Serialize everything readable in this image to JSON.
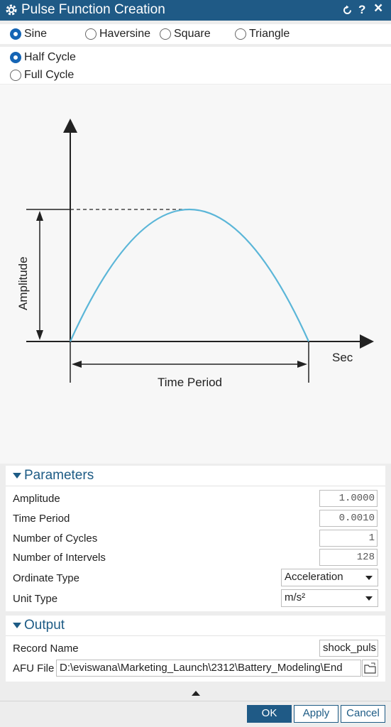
{
  "window": {
    "title": "Pulse Function Creation",
    "reset_icon": "reset-icon",
    "help_label": "?",
    "close_label": "×"
  },
  "pulse_types": [
    {
      "label": "Sine",
      "selected": true
    },
    {
      "label": "Haversine",
      "selected": false
    },
    {
      "label": "Square",
      "selected": false
    },
    {
      "label": "Triangle",
      "selected": false
    }
  ],
  "cycle_options": [
    {
      "label": "Half Cycle",
      "selected": true
    },
    {
      "label": "Full Cycle",
      "selected": false
    }
  ],
  "diagram": {
    "y_label": "Amplitude",
    "x_unit": "Sec",
    "span_label": "Time Period",
    "curve_color": "#5bb6d8"
  },
  "parameters": {
    "title": "Parameters",
    "amplitude": {
      "label": "Amplitude",
      "value": "1.0000"
    },
    "time_period": {
      "label": "Time Period",
      "value": "0.0010"
    },
    "cycles": {
      "label": "Number of Cycles",
      "value": "1"
    },
    "intervals": {
      "label": "Number of Intervels",
      "value": "128"
    },
    "ordinate_type": {
      "label": "Ordinate Type",
      "value": "Acceleration"
    },
    "unit_type": {
      "label": "Unit Type",
      "value": "m/s²"
    }
  },
  "output": {
    "title": "Output",
    "record_name": {
      "label": "Record Name",
      "value": "shock_puls"
    },
    "afu_file": {
      "label": "AFU File",
      "value": "D:\\eviswana\\Marketing_Launch\\2312\\Battery_Modeling\\End"
    }
  },
  "buttons": {
    "ok": "OK",
    "apply": "Apply",
    "cancel": "Cancel"
  },
  "colors": {
    "accent": "#1f5a86",
    "section": "#1d5b85",
    "selected_radio": "#1565b5"
  }
}
